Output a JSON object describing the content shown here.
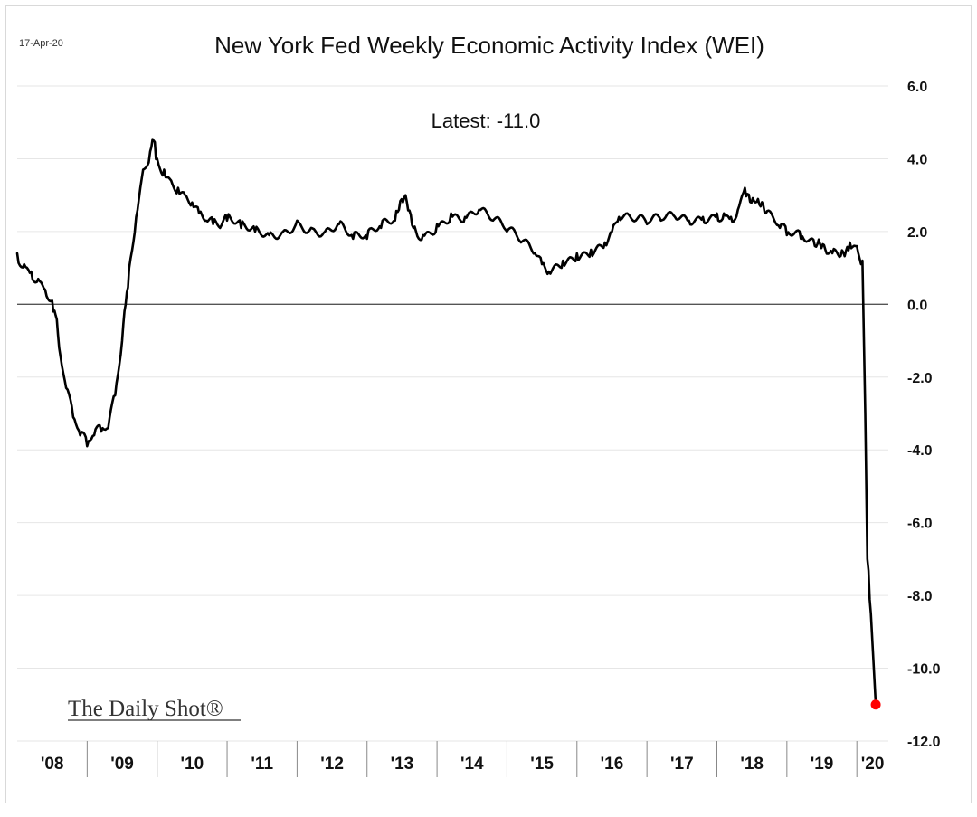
{
  "chart_data": {
    "type": "line",
    "title": "New York Fed Weekly Economic Activity Index (WEI)",
    "date_stamp": "17-Apr-20",
    "annotation": "Latest:  -11.0",
    "watermark": "The Daily Shot®",
    "xlabel": "",
    "ylabel": "",
    "ylim": [
      -12,
      6
    ],
    "y_ticks": [
      {
        "value": 6,
        "label": "6.0"
      },
      {
        "value": 4,
        "label": "4.0"
      },
      {
        "value": 2,
        "label": "2.0"
      },
      {
        "value": 0,
        "label": "0.0"
      },
      {
        "value": -2,
        "label": "-2.0"
      },
      {
        "value": -4,
        "label": "-4.0"
      },
      {
        "value": -6,
        "label": "-6.0"
      },
      {
        "value": -8,
        "label": "-8.0"
      },
      {
        "value": -10,
        "label": "-10.0"
      },
      {
        "value": -12,
        "label": "-12.0"
      }
    ],
    "x_range": [
      2008.0,
      2020.45
    ],
    "x_ticks": [
      "'08",
      "'09",
      "'10",
      "'11",
      "'12",
      "'13",
      "'14",
      "'15",
      "'16",
      "'17",
      "'18",
      "'19",
      "'20"
    ],
    "legend": "none",
    "grid": true,
    "colors": {
      "line": "#000000",
      "latest_marker": "#ff0000",
      "grid": "#e6e6e6",
      "zero_line": "#555555"
    },
    "series": [
      {
        "name": "WEI",
        "x": [
          2008.0,
          2008.1,
          2008.2,
          2008.3,
          2008.4,
          2008.5,
          2008.55,
          2008.6,
          2008.7,
          2008.8,
          2008.9,
          2009.0,
          2009.1,
          2009.2,
          2009.3,
          2009.4,
          2009.5,
          2009.55,
          2009.6,
          2009.7,
          2009.8,
          2009.9,
          2009.95,
          2010.0,
          2010.1,
          2010.2,
          2010.3,
          2010.4,
          2010.5,
          2010.6,
          2010.7,
          2010.8,
          2010.9,
          2011.0,
          2011.2,
          2011.4,
          2011.6,
          2011.8,
          2012.0,
          2012.2,
          2012.4,
          2012.6,
          2012.8,
          2013.0,
          2013.2,
          2013.4,
          2013.55,
          2013.7,
          2013.8,
          2014.0,
          2014.2,
          2014.4,
          2014.6,
          2014.8,
          2015.0,
          2015.2,
          2015.4,
          2015.5,
          2015.6,
          2015.8,
          2016.0,
          2016.2,
          2016.4,
          2016.5,
          2016.6,
          2016.8,
          2017.0,
          2017.2,
          2017.4,
          2017.6,
          2017.8,
          2018.0,
          2018.1,
          2018.2,
          2018.3,
          2018.4,
          2018.55,
          2018.7,
          2018.9,
          2019.0,
          2019.2,
          2019.4,
          2019.55,
          2019.65,
          2019.75,
          2019.9,
          2020.0,
          2020.08,
          2020.12,
          2020.15,
          2020.2,
          2020.27
        ],
        "values": [
          1.4,
          1.1,
          0.9,
          0.7,
          0.4,
          0.1,
          -0.3,
          -1.2,
          -2.3,
          -3.1,
          -3.6,
          -3.9,
          -3.6,
          -3.5,
          -3.4,
          -2.5,
          -1.0,
          0.0,
          1.0,
          2.4,
          3.7,
          4.2,
          4.5,
          4.0,
          3.7,
          3.4,
          3.2,
          3.0,
          2.8,
          2.5,
          2.3,
          2.2,
          2.1,
          2.3,
          2.1,
          2.0,
          1.9,
          2.0,
          2.3,
          2.1,
          2.0,
          2.2,
          1.8,
          1.8,
          2.1,
          2.3,
          3.0,
          2.0,
          1.9,
          2.2,
          2.5,
          2.4,
          2.6,
          2.3,
          2.0,
          1.7,
          1.4,
          1.1,
          0.9,
          1.2,
          1.4,
          1.5,
          1.7,
          2.0,
          2.4,
          2.3,
          2.2,
          2.3,
          2.4,
          2.3,
          2.4,
          2.5,
          2.5,
          2.4,
          2.6,
          3.2,
          2.8,
          2.5,
          2.1,
          1.9,
          1.8,
          1.6,
          1.5,
          1.4,
          1.3,
          1.7,
          1.6,
          1.2,
          -3.0,
          -7.0,
          -8.5,
          -11.0
        ]
      }
    ],
    "latest_point": {
      "x": 2020.27,
      "value": -11.0
    }
  }
}
